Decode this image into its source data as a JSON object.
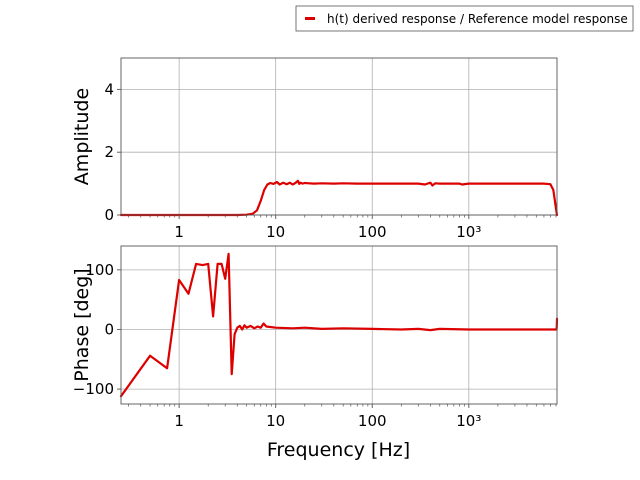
{
  "chart_data": [
    {
      "type": "line",
      "panel": "amplitude",
      "ylabel": "Amplitude",
      "xlabel": "",
      "xscale": "log",
      "xlim": [
        0.25,
        8192
      ],
      "ylim": [
        0,
        5
      ],
      "yticks": [
        0,
        2,
        4
      ],
      "ytick_labels": [
        "0",
        "2",
        "4"
      ],
      "xticks": [
        1,
        10,
        100,
        1000
      ],
      "xtick_labels": [
        "1",
        "10",
        "100",
        "10³"
      ],
      "grid": true,
      "series": [
        {
          "name": "h(t) derived response / Reference model response",
          "color": "#dd0000",
          "x": [
            0.25,
            0.5,
            1,
            2,
            4,
            5,
            5.8,
            6.4,
            7.0,
            7.6,
            8.2,
            8.8,
            9.5,
            10.3,
            11,
            12,
            13,
            14,
            15,
            16,
            17,
            17.5,
            18,
            19,
            20,
            22,
            25,
            30,
            40,
            50,
            70,
            100,
            150,
            200,
            300,
            350,
            400,
            420,
            450,
            500,
            600,
            800,
            850,
            1000,
            2000,
            4000,
            6000,
            7000,
            7500,
            7800,
            8000,
            8192
          ],
          "y": [
            0,
            0,
            0,
            0,
            0,
            0.01,
            0.04,
            0.15,
            0.45,
            0.8,
            0.97,
            1.02,
            0.99,
            1.05,
            0.97,
            1.03,
            0.98,
            1.03,
            0.97,
            1.02,
            1.09,
            0.99,
            1.03,
            1.0,
            1.02,
            1.01,
            1.0,
            1.01,
            1.0,
            1.01,
            1.0,
            1.0,
            1.0,
            1.0,
            1.0,
            0.97,
            1.03,
            0.94,
            1.01,
            1.0,
            1.0,
            1.0,
            0.97,
            1.0,
            1.0,
            1.0,
            1.0,
            0.98,
            0.8,
            0.45,
            0.2,
            0.0
          ]
        }
      ]
    },
    {
      "type": "line",
      "panel": "phase",
      "ylabel": "Phase [deg]",
      "xlabel": "Frequency [Hz]",
      "xscale": "log",
      "xlim": [
        0.25,
        8192
      ],
      "ylim": [
        -125,
        140
      ],
      "yticks": [
        -100,
        0,
        100
      ],
      "ytick_labels": [
        "−100",
        "0",
        "100"
      ],
      "xticks": [
        1,
        10,
        100,
        1000
      ],
      "xtick_labels": [
        "1",
        "10",
        "100",
        "10³"
      ],
      "grid": true,
      "series": [
        {
          "name": "h(t) derived response / Reference model response",
          "color": "#dd0000",
          "x": [
            0.25,
            0.5,
            0.75,
            1.0,
            1.25,
            1.5,
            1.75,
            2.0,
            2.25,
            2.5,
            2.75,
            3.0,
            3.25,
            3.5,
            3.75,
            4.0,
            4.25,
            4.5,
            4.75,
            5.0,
            5.5,
            6.0,
            6.5,
            7.0,
            7.5,
            8.0,
            9.0,
            10,
            15,
            20,
            30,
            50,
            100,
            200,
            300,
            400,
            500,
            1000,
            2000,
            5000,
            8000,
            8100,
            8150,
            8192
          ],
          "y": [
            -112,
            -44,
            -65,
            83,
            60,
            110,
            108,
            110,
            22,
            110,
            110,
            85,
            127,
            -75,
            -8,
            3,
            6,
            0,
            7,
            3,
            6,
            2,
            5,
            3,
            10,
            5,
            4,
            3,
            2,
            3,
            1,
            2,
            1,
            0,
            1,
            -1,
            1,
            0,
            0,
            0,
            0,
            0,
            5,
            18
          ]
        }
      ]
    }
  ],
  "legend": {
    "placement": "top-right",
    "label": "h(t) derived response / Reference model response",
    "color": "#dd0000"
  }
}
